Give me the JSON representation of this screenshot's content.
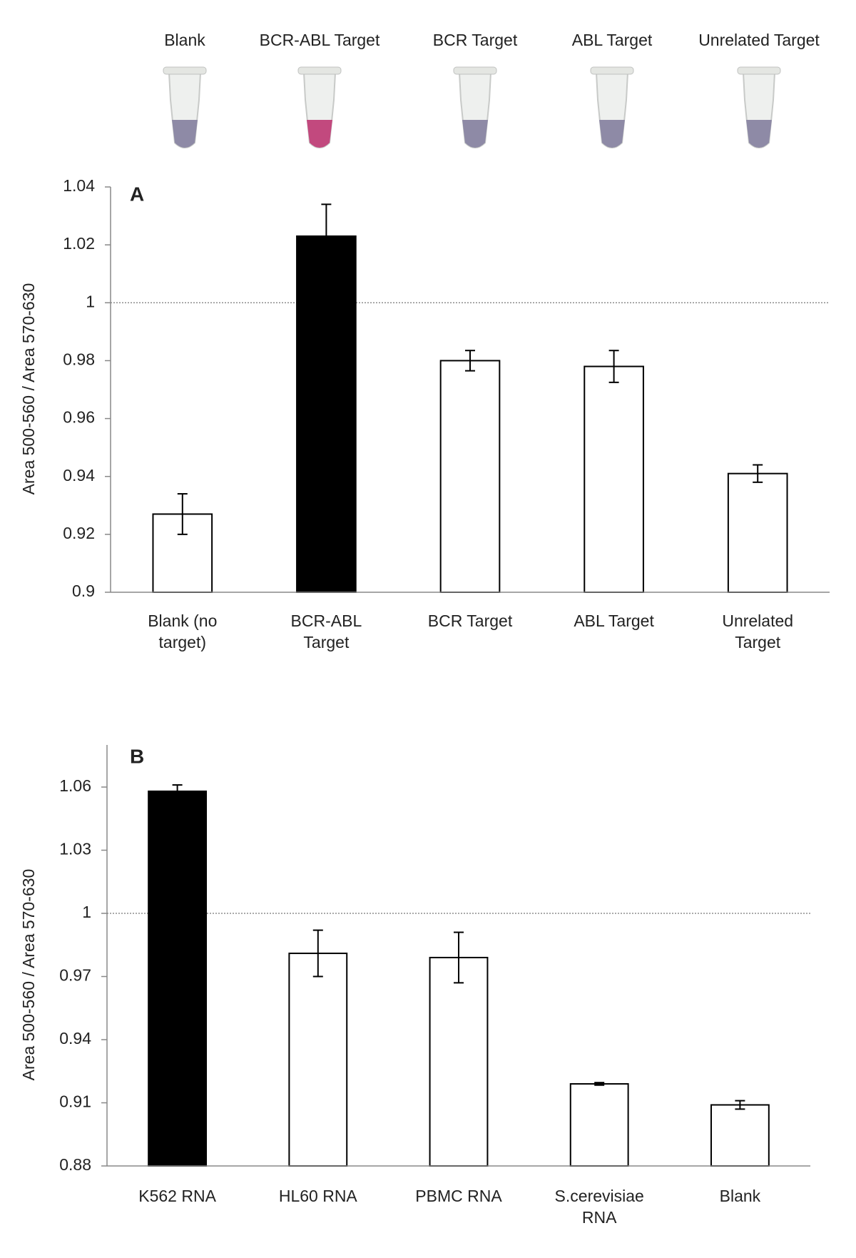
{
  "tubes": {
    "labels": [
      "Blank",
      "BCR-ABL Target",
      "BCR Target",
      "ABL Target",
      "Unrelated Target"
    ],
    "colors": [
      "#8e8aa6",
      "#c2497e",
      "#8e8aa6",
      "#8e8aa6",
      "#8e8aa6"
    ]
  },
  "chart_data": [
    {
      "type": "bar",
      "panel_label": "A",
      "ylabel": "Area  500-560 / Area 570-630",
      "categories": [
        "Blank (no target)",
        "BCR-ABL Target",
        "BCR Target",
        "ABL Target",
        "Unrelated Target"
      ],
      "values": [
        0.927,
        1.023,
        0.98,
        0.978,
        0.941
      ],
      "errors": [
        0.007,
        0.011,
        0.0035,
        0.0055,
        0.003
      ],
      "colors": [
        "#ffffff",
        "#000000",
        "#ffffff",
        "#ffffff",
        "#ffffff"
      ],
      "ylim": [
        0.9,
        1.04
      ],
      "yticks": [
        0.9,
        0.92,
        0.94,
        0.96,
        0.98,
        1,
        1.02,
        1.04
      ],
      "reference_line": 1
    },
    {
      "type": "bar",
      "panel_label": "B",
      "ylabel": "Area  500-560 / Area 570-630",
      "categories": [
        "K562 RNA",
        "HL60 RNA",
        "PBMC RNA",
        "S.cerevisiae RNA",
        "Blank"
      ],
      "values": [
        1.058,
        0.981,
        0.979,
        0.919,
        0.909
      ],
      "errors": [
        0.003,
        0.011,
        0.012,
        0.0006,
        0.002
      ],
      "colors": [
        "#000000",
        "#ffffff",
        "#ffffff",
        "#ffffff",
        "#ffffff"
      ],
      "ylim": [
        0.88,
        1.08
      ],
      "yticks": [
        0.88,
        0.91,
        0.94,
        0.97,
        1,
        1.03,
        1.06
      ],
      "reference_line": 1
    }
  ]
}
